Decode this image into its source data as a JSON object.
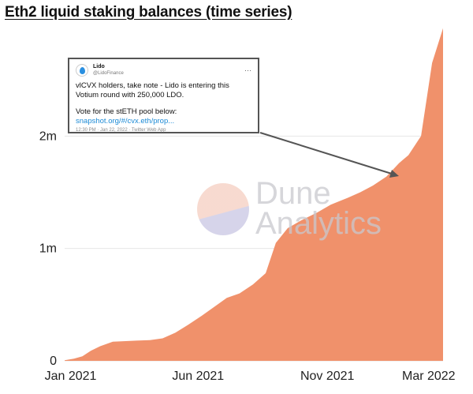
{
  "title": "Eth2 liquid staking balances (time series)",
  "chart_data": {
    "type": "area",
    "title": "Eth2 liquid staking balances (time series)",
    "xlabel": "",
    "ylabel": "",
    "fill_color": "#f0916b",
    "x_ticks": [
      "Jan 2021",
      "Jun 2021",
      "Nov 2021",
      "Mar 2022"
    ],
    "y_ticks": [
      "0",
      "1m",
      "2m"
    ],
    "ylim": [
      0,
      3000000
    ],
    "xlim": [
      "2020-12-25",
      "2022-03-18"
    ],
    "grid": "horizontal",
    "x": [
      "2020-12-25",
      "2021-01-05",
      "2021-01-15",
      "2021-01-25",
      "2021-02-05",
      "2021-02-20",
      "2021-03-05",
      "2021-03-20",
      "2021-04-05",
      "2021-04-20",
      "2021-05-05",
      "2021-05-20",
      "2021-06-05",
      "2021-06-20",
      "2021-07-05",
      "2021-07-20",
      "2021-08-05",
      "2021-08-20",
      "2021-09-01",
      "2021-09-15",
      "2021-10-01",
      "2021-10-20",
      "2021-11-05",
      "2021-11-25",
      "2021-12-10",
      "2021-12-25",
      "2022-01-10",
      "2022-01-25",
      "2022-02-05",
      "2022-02-20",
      "2022-03-05",
      "2022-03-18"
    ],
    "values": [
      5000,
      20000,
      40000,
      90000,
      130000,
      170000,
      175000,
      180000,
      185000,
      200000,
      250000,
      320000,
      400000,
      480000,
      560000,
      600000,
      680000,
      780000,
      1050000,
      1180000,
      1250000,
      1320000,
      1390000,
      1450000,
      1500000,
      1560000,
      1640000,
      1760000,
      1830000,
      2000000,
      2650000,
      2960000
    ]
  },
  "tweet": {
    "name": "Lido",
    "handle": "@LidoFinance",
    "more": "···",
    "line1": "vlCVX holders, take note - Lido is entering this Votium round with 250,000 LDO.",
    "line2": "Vote for the stETH pool below:",
    "link": "snapshot.org/#/cvx.eth/prop...",
    "meta": "12:30 PM · Jan 22, 2022 · Twitter Web App"
  },
  "watermark": {
    "line1": "Dune",
    "line2": "Analytics"
  }
}
